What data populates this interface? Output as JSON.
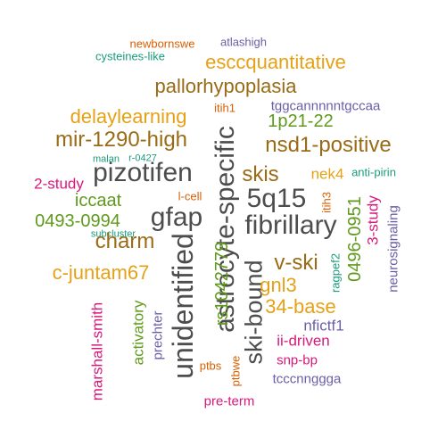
{
  "words": {
    "newbornswe": "newbornswe",
    "atlashigh": "atlashigh",
    "cysteines_like": "cysteines-like",
    "esccquantitative": "esccquantitative",
    "pallorhypoplasia": "pallorhypoplasia",
    "itih1": "itih1",
    "tggcannnnntgccaa": "tggcannnnntgccaa",
    "delaylearning": "delaylearning",
    "p21_22": "1p21-22",
    "mir_1290_high": "mir-1290-high",
    "nsd1_positive": "nsd1-positive",
    "astrocyte_specific": "astrocyte-specific",
    "malan": "malan",
    "r_0427": "r-0427",
    "pizotifen": "pizotifen",
    "skis": "skis",
    "nek4": "nek4",
    "anti_pirin": "anti-pirin",
    "study2": "2-study",
    "l_cell": "l-cell",
    "itih3": "itih3",
    "q15": "5q15",
    "iccaat": "iccaat",
    "gfap": "gfap",
    "fibrillary": "fibrillary",
    "n0493_0994": "0493-0994",
    "n0496_0951": "0496-0951",
    "study3": "3-study",
    "neurosignaling": "neurosignaling",
    "subcluster": "subcluster",
    "charm": "charm",
    "unidentified": "unidentified",
    "ski_bound": "ski-bound",
    "v_ski": "v-ski",
    "c_juntam67": "c-juntam67",
    "rs1042779": "rs1042779",
    "gnl3": "gnl3",
    "ragpef2": "ragpef2",
    "base34": "34-base",
    "marshall_smith": "marshall-smith",
    "nfictf1": "nfictf1",
    "prechter": "prechter",
    "activatory": "activatory",
    "ii_driven": "ii-driven",
    "snp_bp": "snp-bp",
    "ptbs": "ptbs",
    "ptbwe": "ptbwe",
    "tcccnnggga": "tcccnnggga",
    "pre_term": "pre-term"
  },
  "palette": {
    "orange": "#e6a117",
    "brown": "#9a6b16",
    "grey": "#4d4d4d",
    "green": "#5f9a1c",
    "pink": "#d8197b",
    "purple": "#6a5fa7",
    "teal": "#1a9c7c",
    "red": "#d95f02"
  }
}
